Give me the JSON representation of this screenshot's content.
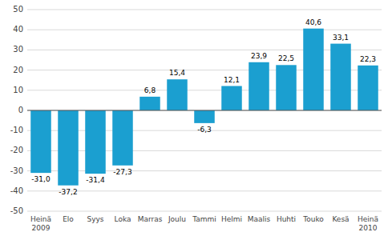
{
  "chart_data": {
    "type": "bar",
    "categories": [
      "Heinä\n2009",
      "Elo",
      "Syys",
      "Loka",
      "Marras",
      "Joulu",
      "Tammi",
      "Helmi",
      "Maalis",
      "Huhti",
      "Touko",
      "Kesä",
      "Heinä\n2010"
    ],
    "values": [
      -31.0,
      -37.2,
      -31.4,
      -27.3,
      6.8,
      15.4,
      -6.3,
      12.1,
      23.9,
      22.5,
      40.6,
      33.1,
      22.3
    ],
    "value_labels": [
      "-31,0",
      "-37,2",
      "-31,4",
      "-27,3",
      "6,8",
      "15,4",
      "-6,3",
      "12,1",
      "23,9",
      "22,5",
      "40,6",
      "33,1",
      "22,3"
    ],
    "data_labels": true,
    "color": "#1b9fd0",
    "ylim": [
      -50,
      50
    ],
    "yticks": [
      -50,
      -40,
      -30,
      -20,
      -10,
      0,
      10,
      20,
      30,
      40,
      50
    ],
    "grid": true
  }
}
